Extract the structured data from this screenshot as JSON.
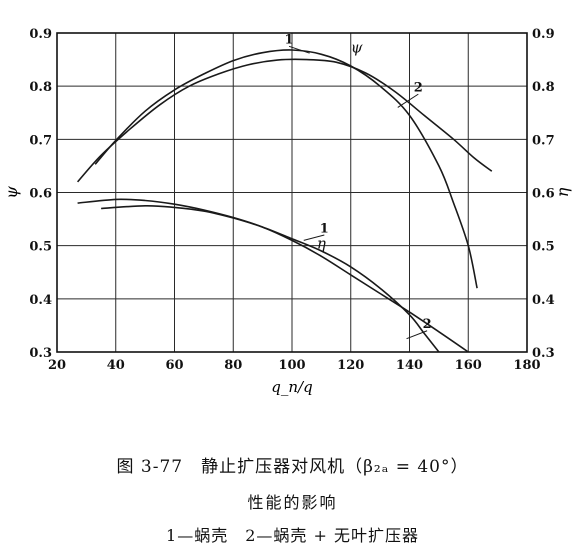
{
  "chart_data": {
    "type": "line",
    "title": "",
    "xlabel": "q_n/q",
    "ylabel_left": "ψ",
    "ylabel_right": "η",
    "xlim": [
      20,
      180
    ],
    "ylim": [
      0.3,
      0.9
    ],
    "x_ticks": [
      "20",
      "40",
      "60",
      "80",
      "100",
      "120",
      "140",
      "160",
      "180"
    ],
    "y_ticks_left": [
      "0.3",
      "0.4",
      "0.5",
      "0.6",
      "0.7",
      "0.8",
      "0.9"
    ],
    "y_ticks_right": [
      "0.3",
      "0.4",
      "0.5",
      "0.6",
      "0.7",
      "0.8",
      "0.9"
    ],
    "grid": true,
    "series": [
      {
        "name": "ψ (1)",
        "group": "psi",
        "label": "1",
        "x": [
          33,
          40,
          50,
          60,
          70,
          80,
          90,
          100,
          110,
          120,
          130,
          140,
          150,
          155,
          160,
          163
        ],
        "y": [
          0.653,
          0.698,
          0.753,
          0.793,
          0.823,
          0.848,
          0.863,
          0.868,
          0.86,
          0.838,
          0.8,
          0.745,
          0.65,
          0.58,
          0.5,
          0.42
        ]
      },
      {
        "name": "ψ (2)",
        "group": "psi",
        "label": "2",
        "x": [
          27,
          35,
          45,
          55,
          65,
          75,
          85,
          95,
          105,
          115,
          125,
          135,
          145,
          155,
          162,
          168
        ],
        "y": [
          0.62,
          0.67,
          0.72,
          0.765,
          0.8,
          0.823,
          0.84,
          0.849,
          0.85,
          0.845,
          0.825,
          0.79,
          0.745,
          0.7,
          0.665,
          0.64
        ]
      },
      {
        "name": "η (1)",
        "group": "eta",
        "label": "1",
        "x": [
          35,
          50,
          60,
          70,
          80,
          90,
          100,
          110,
          120,
          130,
          140,
          145,
          150
        ],
        "y": [
          0.57,
          0.575,
          0.572,
          0.565,
          0.552,
          0.535,
          0.513,
          0.49,
          0.46,
          0.42,
          0.37,
          0.335,
          0.3
        ]
      },
      {
        "name": "η (2)",
        "group": "eta",
        "label": "2",
        "x": [
          27,
          40,
          50,
          60,
          70,
          80,
          90,
          100,
          110,
          120,
          130,
          140,
          150,
          160
        ],
        "y": [
          0.58,
          0.587,
          0.585,
          0.578,
          0.567,
          0.553,
          0.535,
          0.51,
          0.48,
          0.445,
          0.41,
          0.375,
          0.338,
          0.3
        ]
      }
    ],
    "annotations": [
      {
        "text": "ψ",
        "x": 122,
        "y": 0.863
      },
      {
        "text": "η",
        "x": 110,
        "y": 0.495
      },
      {
        "text": "1",
        "x": 99,
        "y": 0.88
      },
      {
        "text": "2",
        "x": 143,
        "y": 0.79
      },
      {
        "text": "1",
        "x": 111,
        "y": 0.525
      },
      {
        "text": "2",
        "x": 146,
        "y": 0.345
      }
    ]
  },
  "caption": {
    "line1": "图 3-77　静止扩压器对风机（β₂ₐ = 40°）",
    "line2": "性能的影响",
    "line3": "1—蜗壳　2—蜗壳 + 无叶扩压器"
  },
  "colors": {
    "line": "#1a1a1a",
    "grid": "#2a2a2a",
    "background": "#ffffff"
  }
}
